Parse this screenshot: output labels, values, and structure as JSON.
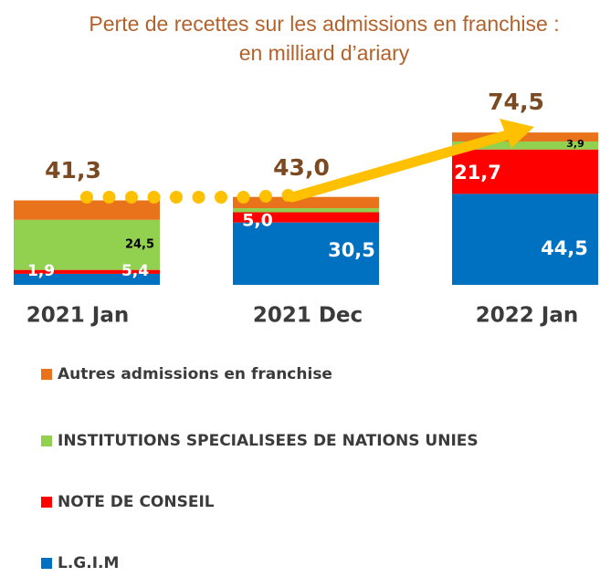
{
  "chart_data": {
    "type": "stacked_bar",
    "title": "Perte de recettes sur les admissions en franchise :",
    "subtitle": "en milliard d’ariary",
    "categories": [
      "2021 Jan",
      "2021 Dec",
      "2022 Jan"
    ],
    "totals": [
      41.3,
      43.0,
      74.5
    ],
    "total_labels": [
      "41,3",
      "43,0",
      "74,5"
    ],
    "series": [
      {
        "name": "L.G.I.M",
        "color": "#0070c0",
        "values": [
          5.4,
          30.5,
          44.5
        ],
        "value_labels": [
          "5,4",
          "30,5",
          "44,5"
        ]
      },
      {
        "name": "NOTE DE CONSEIL",
        "color": "#ff0000",
        "values": [
          1.9,
          5.0,
          21.7
        ],
        "value_labels": [
          "1,9",
          "5,0",
          "21,7"
        ]
      },
      {
        "name": "INSTITUTIONS SPECIALISEES DE NATIONS UNIES",
        "color": "#92d050",
        "values": [
          24.5,
          2.0,
          3.9
        ],
        "value_labels": [
          "24,5",
          null,
          "3,9"
        ]
      },
      {
        "name": "Autres admissions en franchise",
        "color": "#e8731a",
        "values": [
          9.5,
          5.5,
          4.4
        ]
      }
    ]
  }
}
